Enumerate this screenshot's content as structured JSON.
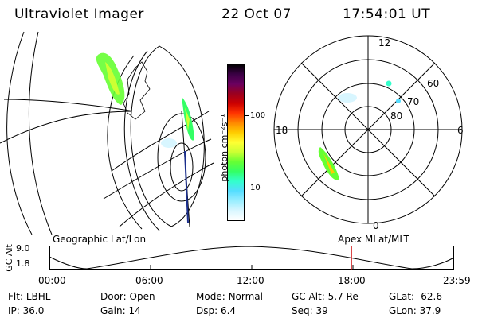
{
  "header": {
    "title": "Ultraviolet Imager",
    "date": "22 Oct 07",
    "time": "17:54:01 UT"
  },
  "colorbar": {
    "label": "photon cm⁻²s⁻¹",
    "ticks": [
      "100",
      "10"
    ],
    "colors": [
      "#000000",
      "#3a0044",
      "#6a0060",
      "#9a0020",
      "#cc0000",
      "#ff3300",
      "#ff8800",
      "#ffcc00",
      "#ffff33",
      "#ccff33",
      "#66ff33",
      "#33ff66",
      "#33ffcc",
      "#55ddff",
      "#99eeff",
      "#d8f6ff",
      "#ffffff"
    ]
  },
  "polar": {
    "hour_labels": {
      "top": "12",
      "left": "18",
      "right": "6",
      "bottom": "0"
    },
    "lat_labels": [
      "60",
      "70",
      "80"
    ]
  },
  "timeline": {
    "left_label": "Geographic Lat/Lon",
    "right_label": "Apex  MLat/MLT",
    "y_title": "GC Alt",
    "y_ticks": [
      "9.0",
      "1.8"
    ],
    "x_ticks": [
      "00:00",
      "06:00",
      "12:00",
      "18:00",
      "23:59"
    ],
    "marker_time": "17:54:01",
    "marker_fraction": 0.746,
    "marker_color": "#cc0000"
  },
  "info": {
    "row1": [
      {
        "key": "Flt:",
        "value": "LBHL"
      },
      {
        "key": "Door:",
        "value": "Open"
      },
      {
        "key": "Mode:",
        "value": "Normal"
      },
      {
        "key": "GC Alt:",
        "value": "5.7 Re"
      },
      {
        "key": "GLat:",
        "value": "-62.6"
      }
    ],
    "row2": [
      {
        "key": "IP:",
        "value": "36.0"
      },
      {
        "key": "Gain:",
        "value": "14"
      },
      {
        "key": "Dsp:",
        "value": "6.4"
      },
      {
        "key": "Seq:",
        "value": "39"
      },
      {
        "key": "GLon:",
        "value": "37.9"
      }
    ]
  }
}
